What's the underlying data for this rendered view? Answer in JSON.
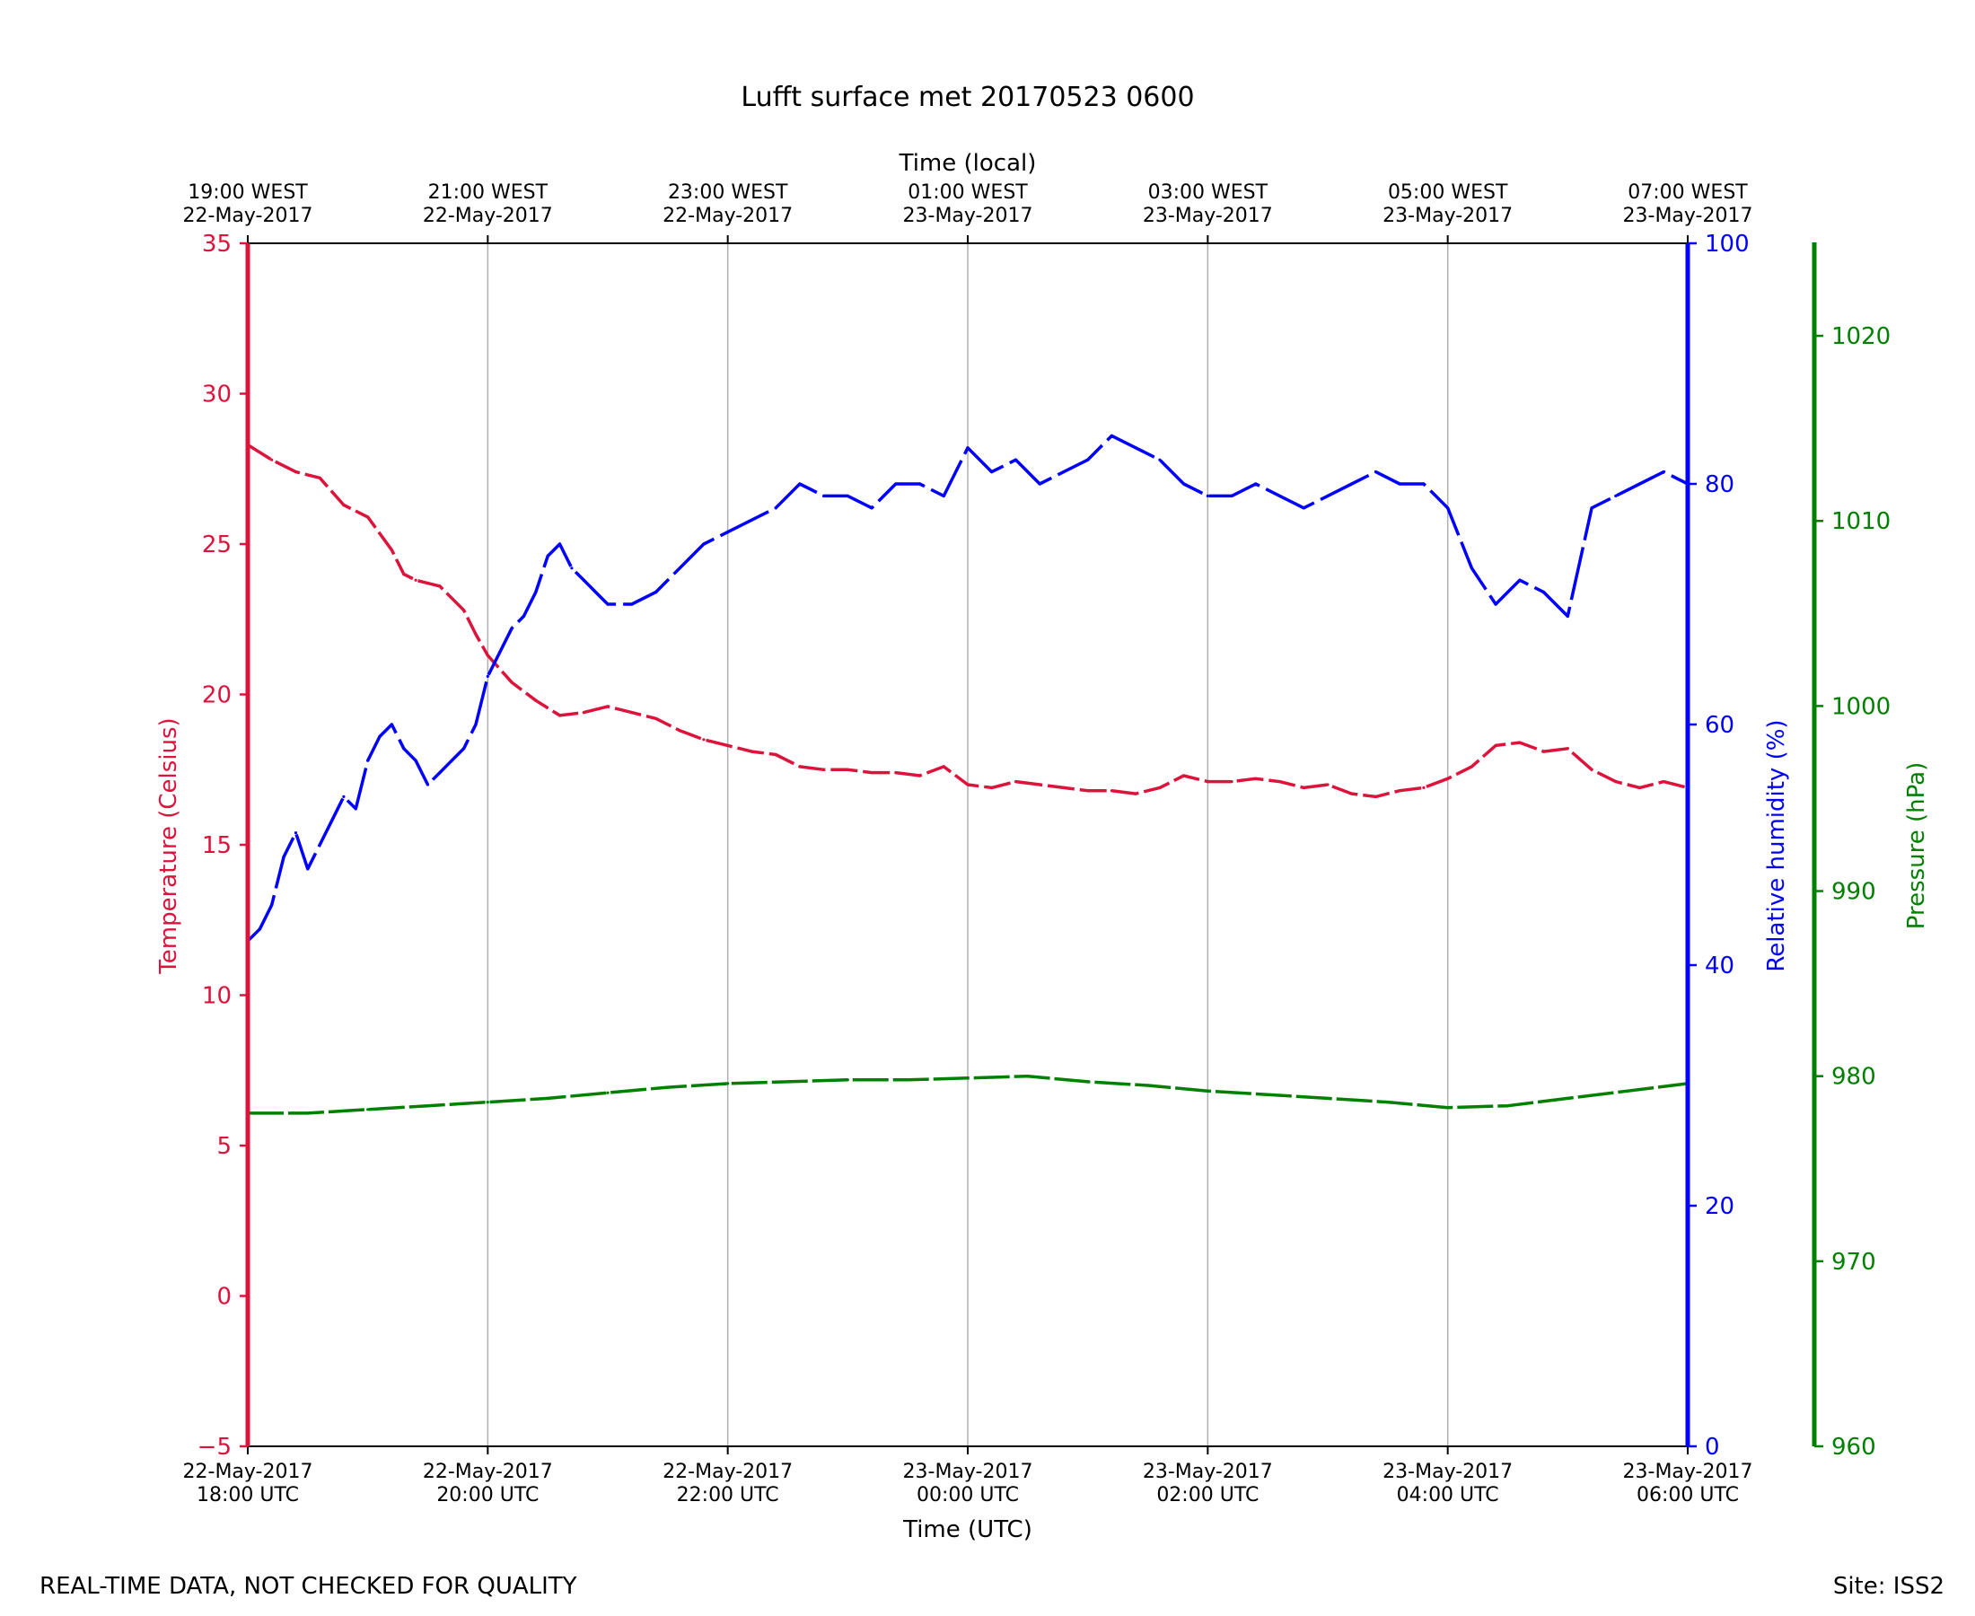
{
  "chart_data": {
    "type": "line",
    "title": "Lufft surface met 20170523 0600",
    "xlabel": "Time (UTC)",
    "xlabel_top": "Time (local)",
    "x_range_hours": [
      0,
      12
    ],
    "bottom_ticks": [
      {
        "h": 0,
        "line1": "22-May-2017",
        "line2": "18:00 UTC"
      },
      {
        "h": 2,
        "line1": "22-May-2017",
        "line2": "20:00 UTC"
      },
      {
        "h": 4,
        "line1": "22-May-2017",
        "line2": "22:00 UTC"
      },
      {
        "h": 6,
        "line1": "23-May-2017",
        "line2": "00:00 UTC"
      },
      {
        "h": 8,
        "line1": "23-May-2017",
        "line2": "02:00 UTC"
      },
      {
        "h": 10,
        "line1": "23-May-2017",
        "line2": "04:00 UTC"
      },
      {
        "h": 12,
        "line1": "23-May-2017",
        "line2": "06:00 UTC"
      }
    ],
    "top_ticks": [
      {
        "h": 0,
        "line1": "19:00 WEST",
        "line2": "22-May-2017"
      },
      {
        "h": 2,
        "line1": "21:00 WEST",
        "line2": "22-May-2017"
      },
      {
        "h": 4,
        "line1": "23:00 WEST",
        "line2": "22-May-2017"
      },
      {
        "h": 6,
        "line1": "01:00 WEST",
        "line2": "23-May-2017"
      },
      {
        "h": 8,
        "line1": "03:00 WEST",
        "line2": "23-May-2017"
      },
      {
        "h": 10,
        "line1": "05:00 WEST",
        "line2": "23-May-2017"
      },
      {
        "h": 12,
        "line1": "07:00 WEST",
        "line2": "23-May-2017"
      }
    ],
    "axes": {
      "temperature": {
        "label": "Temperature (Celsius)",
        "range": [
          -5,
          35
        ],
        "ticks": [
          -5,
          0,
          5,
          10,
          15,
          20,
          25,
          30,
          35
        ],
        "tick_labels": [
          "−5",
          "0",
          "5",
          "10",
          "15",
          "20",
          "25",
          "30",
          "35"
        ],
        "color": "#dc143c"
      },
      "humidity": {
        "label": "Relative humidity (%)",
        "range": [
          0,
          100
        ],
        "ticks": [
          0,
          20,
          40,
          60,
          80,
          100
        ],
        "tick_labels": [
          "0",
          "20",
          "40",
          "60",
          "80",
          "100"
        ],
        "color": "#0000ff"
      },
      "pressure": {
        "label": "Pressure (hPa)",
        "range": [
          960,
          1025
        ],
        "ticks": [
          960,
          970,
          980,
          990,
          1000,
          1010,
          1020
        ],
        "tick_labels": [
          "960",
          "970",
          "980",
          "990",
          "1000",
          "1010",
          "1020"
        ],
        "color": "#008000"
      }
    },
    "grid": "vertical",
    "series": [
      {
        "name": "Temperature",
        "axis": "temperature",
        "color": "#dc143c",
        "x": [
          0,
          0.2,
          0.4,
          0.6,
          0.8,
          1.0,
          1.2,
          1.3,
          1.4,
          1.6,
          1.8,
          1.9,
          2.0,
          2.2,
          2.4,
          2.6,
          2.8,
          3.0,
          3.2,
          3.4,
          3.6,
          3.8,
          4.0,
          4.2,
          4.4,
          4.6,
          4.8,
          5.0,
          5.2,
          5.4,
          5.6,
          5.8,
          6.0,
          6.2,
          6.4,
          6.6,
          6.8,
          7.0,
          7.2,
          7.4,
          7.6,
          7.8,
          8.0,
          8.2,
          8.4,
          8.6,
          8.8,
          9.0,
          9.2,
          9.4,
          9.6,
          9.8,
          10.0,
          10.2,
          10.4,
          10.6,
          10.8,
          11.0,
          11.2,
          11.4,
          11.6,
          11.8,
          12.0
        ],
        "values": [
          28.3,
          27.8,
          27.4,
          27.2,
          26.3,
          25.9,
          24.8,
          24.0,
          23.8,
          23.6,
          22.8,
          22.0,
          21.3,
          20.4,
          19.8,
          19.3,
          19.4,
          19.6,
          19.4,
          19.2,
          18.8,
          18.5,
          18.3,
          18.1,
          18.0,
          17.6,
          17.5,
          17.5,
          17.4,
          17.4,
          17.3,
          17.6,
          17.0,
          16.9,
          17.1,
          17.0,
          16.9,
          16.8,
          16.8,
          16.7,
          16.9,
          17.3,
          17.1,
          17.1,
          17.2,
          17.1,
          16.9,
          17.0,
          16.7,
          16.6,
          16.8,
          16.9,
          17.2,
          17.6,
          18.3,
          18.4,
          18.1,
          18.2,
          17.5,
          17.1,
          16.9,
          17.1,
          16.9
        ]
      },
      {
        "name": "Relative humidity",
        "axis": "humidity",
        "color": "#0000ff",
        "x": [
          0,
          0.1,
          0.2,
          0.3,
          0.4,
          0.5,
          0.6,
          0.7,
          0.8,
          0.9,
          1.0,
          1.1,
          1.2,
          1.3,
          1.4,
          1.5,
          1.6,
          1.7,
          1.8,
          1.9,
          2.0,
          2.1,
          2.2,
          2.3,
          2.4,
          2.5,
          2.6,
          2.7,
          2.8,
          2.9,
          3.0,
          3.2,
          3.4,
          3.6,
          3.8,
          4.0,
          4.2,
          4.4,
          4.6,
          4.8,
          5.0,
          5.2,
          5.4,
          5.6,
          5.8,
          6.0,
          6.2,
          6.4,
          6.6,
          6.8,
          7.0,
          7.2,
          7.4,
          7.6,
          7.8,
          8.0,
          8.2,
          8.4,
          8.6,
          8.8,
          9.0,
          9.2,
          9.4,
          9.6,
          9.8,
          10.0,
          10.2,
          10.4,
          10.6,
          10.8,
          11.0,
          11.2,
          11.4,
          11.6,
          11.8,
          12.0
        ],
        "values": [
          42,
          43,
          45,
          49,
          51,
          48,
          50,
          52,
          54,
          53,
          57,
          59,
          60,
          58,
          57,
          55,
          56,
          57,
          58,
          60,
          64,
          66,
          68,
          69,
          71,
          74,
          75,
          73,
          72,
          71,
          70,
          70,
          71,
          73,
          75,
          76,
          77,
          78,
          80,
          79,
          79,
          78,
          80,
          80,
          79,
          83,
          81,
          82,
          80,
          81,
          82,
          84,
          83,
          82,
          80,
          79,
          79,
          80,
          79,
          78,
          79,
          80,
          81,
          80,
          80,
          78,
          73,
          70,
          72,
          71,
          69,
          78,
          79,
          80,
          81,
          80
        ]
      },
      {
        "name": "Pressure",
        "axis": "pressure",
        "color": "#008000",
        "x": [
          0,
          0.5,
          1,
          1.5,
          2,
          2.5,
          3,
          3.5,
          4,
          4.5,
          5,
          5.5,
          6,
          6.5,
          7,
          7.5,
          8,
          8.5,
          9,
          9.5,
          10,
          10.5,
          11,
          11.5,
          12
        ],
        "values": [
          978.0,
          978.0,
          978.2,
          978.4,
          978.6,
          978.8,
          979.1,
          979.4,
          979.6,
          979.7,
          979.8,
          979.8,
          979.9,
          980.0,
          979.7,
          979.5,
          979.2,
          979.0,
          978.8,
          978.6,
          978.3,
          978.4,
          978.8,
          979.2,
          979.6
        ]
      }
    ]
  },
  "footer": {
    "left": "REAL-TIME DATA, NOT CHECKED FOR QUALITY",
    "right": "Site: ISS2"
  }
}
